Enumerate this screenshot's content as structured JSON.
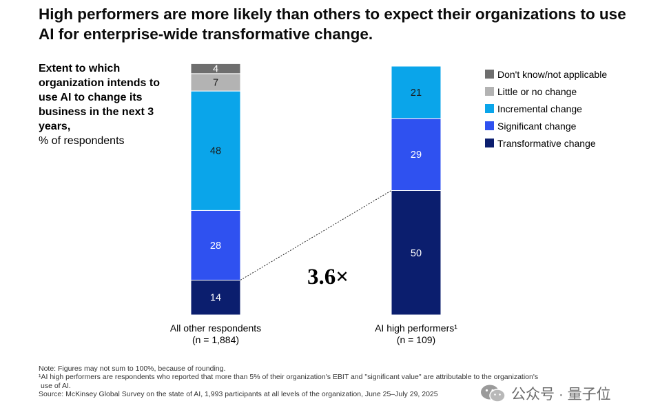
{
  "title": "High performers are more likely than others to expect their organizations to use AI for enterprise-wide transformative change.",
  "subtitle_bold": "Extent to which organization intends to use AI to change its business in the next 3 years,",
  "subtitle_normal": "% of respondents",
  "multiplier": "3.6×",
  "colors": {
    "Don't know/not applicable": "#6e6e6e",
    "Little or no change": "#b3b3b3",
    "Incremental change": "#0aa5ea",
    "Significant change": "#2f51f0",
    "Transformative change": "#0b1e6e"
  },
  "notes": {
    "note": "Note: Figures may not sum to 100%, because of rounding.",
    "footnote_line1": "¹AI high performers are respondents who reported that more than 5% of their organization's EBIT and \"significant value\" are attributable to the organization's",
    "footnote_line2": "use of AI.",
    "source": "Source: McKinsey Global Survey on the state of AI, 1,993 participants at all levels of the organization, June 25–July 29, 2025"
  },
  "watermark": "公众号 · 量子位",
  "chart_data": {
    "type": "bar",
    "stacked": true,
    "categories": [
      {
        "label": "All other respondents",
        "sublabel": "(n = 1,884)"
      },
      {
        "label": "AI high performers¹",
        "sublabel": "(n = 109)"
      }
    ],
    "series": [
      {
        "name": "Transformative change",
        "values": [
          14,
          50
        ]
      },
      {
        "name": "Significant change",
        "values": [
          28,
          29
        ]
      },
      {
        "name": "Incremental change",
        "values": [
          48,
          21
        ]
      },
      {
        "name": "Little or no change",
        "values": [
          7,
          null
        ]
      },
      {
        "name": "Don't know/not applicable",
        "values": [
          4,
          null
        ]
      }
    ],
    "legend": [
      "Don't know/not applicable",
      "Little or no change",
      "Incremental change",
      "Significant change",
      "Transformative change"
    ],
    "legend_position": "right",
    "ylim": [
      0,
      100
    ],
    "grid": false
  }
}
